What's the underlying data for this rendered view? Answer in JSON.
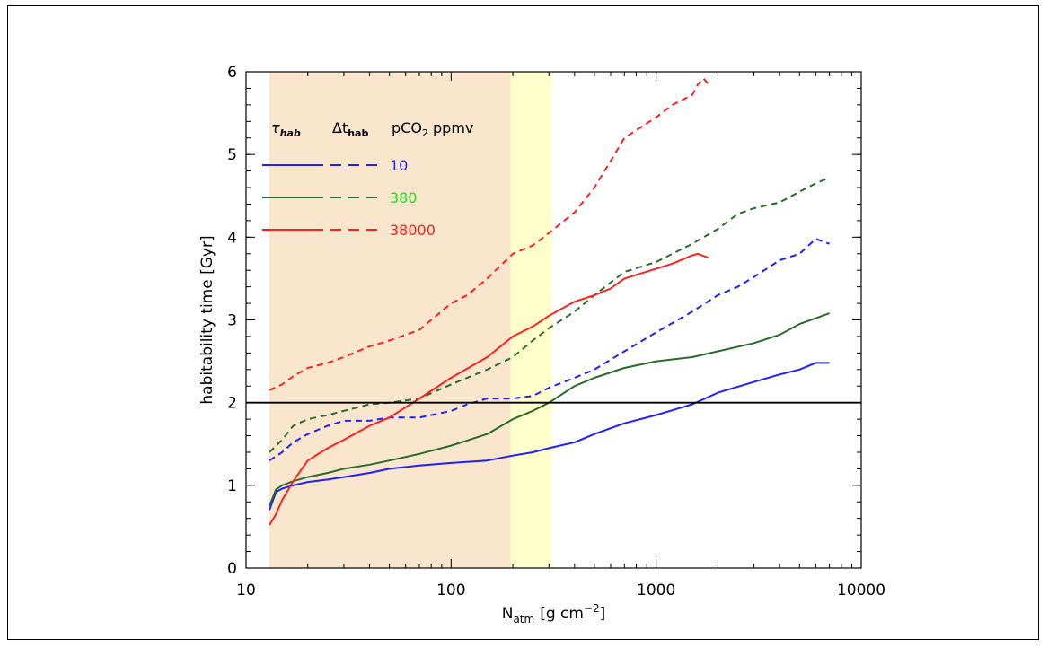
{
  "chart_data": {
    "type": "line",
    "xscale": "log",
    "xlim": [
      10,
      10000
    ],
    "ylim": [
      0,
      6
    ],
    "xlabel": "N",
    "xlabel_sub": "atm",
    "xlabel_unit": "[g cm",
    "xlabel_sup": "−2",
    "xlabel_close": "]",
    "ylabel": "habitability time [Gyr]",
    "x_ticks": [
      "10",
      "100",
      "1000",
      "10000"
    ],
    "y_ticks": [
      "0",
      "1",
      "2",
      "3",
      "4",
      "5",
      "6"
    ],
    "shaded_regions": [
      {
        "x_range": [
          13,
          195
        ],
        "color": "#fae6cc"
      },
      {
        "x_range": [
          195,
          310
        ],
        "color": "#ffffcc"
      }
    ],
    "reference_line": {
      "y": 2,
      "color": "#000000"
    },
    "legend_header": {
      "tau": "τ",
      "tau_sub": "hab",
      "delta": "Δt",
      "delta_sub": "hab",
      "pco2": "pCO",
      "pco2_sub": "2",
      "ppmv": " ppmv"
    },
    "series": [
      {
        "name": "10",
        "color": "#1f1fff",
        "style": "solid",
        "x": [
          13,
          14,
          15,
          17,
          20,
          25,
          30,
          40,
          50,
          70,
          100,
          150,
          200,
          250,
          300,
          400,
          500,
          700,
          1000,
          1500,
          2000,
          3000,
          4000,
          5000,
          6000,
          7000
        ],
        "y": [
          0.7,
          0.92,
          0.96,
          1.0,
          1.04,
          1.07,
          1.1,
          1.15,
          1.2,
          1.24,
          1.27,
          1.3,
          1.36,
          1.4,
          1.45,
          1.52,
          1.62,
          1.75,
          1.85,
          1.98,
          2.12,
          2.25,
          2.34,
          2.4,
          2.48,
          2.48
        ]
      },
      {
        "name": "10",
        "color": "#1f1fff",
        "style": "dashed",
        "x": [
          13,
          15,
          17,
          20,
          25,
          30,
          40,
          50,
          70,
          100,
          120,
          150,
          200,
          250,
          300,
          400,
          500,
          700,
          1000,
          1500,
          2000,
          2500,
          3000,
          4000,
          5000,
          6000,
          7000
        ],
        "y": [
          1.3,
          1.4,
          1.52,
          1.62,
          1.72,
          1.78,
          1.78,
          1.82,
          1.82,
          1.9,
          1.98,
          2.05,
          2.05,
          2.08,
          2.18,
          2.3,
          2.4,
          2.62,
          2.85,
          3.1,
          3.3,
          3.4,
          3.52,
          3.72,
          3.8,
          3.98,
          3.92
        ]
      },
      {
        "name": "380",
        "color": "#2a6a2a",
        "style": "solid",
        "x": [
          13,
          14,
          15,
          17,
          20,
          25,
          30,
          40,
          50,
          70,
          100,
          150,
          200,
          250,
          300,
          400,
          500,
          700,
          1000,
          1500,
          2000,
          3000,
          4000,
          5000,
          6000,
          7000
        ],
        "y": [
          0.75,
          0.95,
          1.0,
          1.05,
          1.1,
          1.15,
          1.2,
          1.25,
          1.3,
          1.38,
          1.48,
          1.62,
          1.8,
          1.9,
          2.0,
          2.2,
          2.3,
          2.42,
          2.5,
          2.55,
          2.62,
          2.72,
          2.82,
          2.95,
          3.02,
          3.08
        ]
      },
      {
        "name": "380",
        "color": "#2a6a2a",
        "style": "dashed",
        "x": [
          13,
          15,
          17,
          20,
          25,
          30,
          40,
          50,
          70,
          100,
          150,
          200,
          250,
          300,
          400,
          500,
          700,
          1000,
          1200,
          1500,
          2000,
          2500,
          3000,
          4000,
          5000,
          6000,
          7000
        ],
        "y": [
          1.4,
          1.55,
          1.72,
          1.8,
          1.85,
          1.9,
          1.98,
          2.0,
          2.05,
          2.22,
          2.4,
          2.55,
          2.75,
          2.9,
          3.1,
          3.3,
          3.58,
          3.7,
          3.8,
          3.92,
          4.1,
          4.28,
          4.35,
          4.42,
          4.55,
          4.65,
          4.72
        ]
      },
      {
        "name": "38000",
        "color": "#ff2020",
        "style": "solid",
        "x": [
          13,
          14,
          15,
          17,
          20,
          25,
          30,
          40,
          50,
          70,
          100,
          150,
          200,
          250,
          300,
          400,
          500,
          600,
          700,
          1000,
          1200,
          1500,
          1600,
          1800
        ],
        "y": [
          0.52,
          0.65,
          0.82,
          1.05,
          1.3,
          1.45,
          1.55,
          1.72,
          1.82,
          2.05,
          2.3,
          2.55,
          2.8,
          2.92,
          3.05,
          3.22,
          3.3,
          3.38,
          3.5,
          3.62,
          3.68,
          3.78,
          3.8,
          3.75
        ]
      },
      {
        "name": "38000",
        "color": "#ff2020",
        "style": "dashed",
        "x": [
          13,
          15,
          17,
          20,
          25,
          30,
          40,
          50,
          70,
          100,
          120,
          150,
          200,
          250,
          300,
          400,
          500,
          600,
          700,
          1000,
          1200,
          1500,
          1600,
          1700,
          1800
        ],
        "y": [
          2.15,
          2.22,
          2.32,
          2.42,
          2.48,
          2.55,
          2.68,
          2.75,
          2.88,
          3.2,
          3.3,
          3.5,
          3.8,
          3.9,
          4.05,
          4.3,
          4.6,
          4.92,
          5.2,
          5.45,
          5.6,
          5.72,
          5.85,
          5.92,
          5.85
        ]
      }
    ],
    "legend": {
      "placement": "top-left",
      "entries": [
        {
          "label": "10",
          "color": "#1f1fff"
        },
        {
          "label": "380",
          "color": "#2a6a2a",
          "label_color": "#22dd22"
        },
        {
          "label": "38000",
          "color": "#ff2020"
        }
      ]
    }
  }
}
